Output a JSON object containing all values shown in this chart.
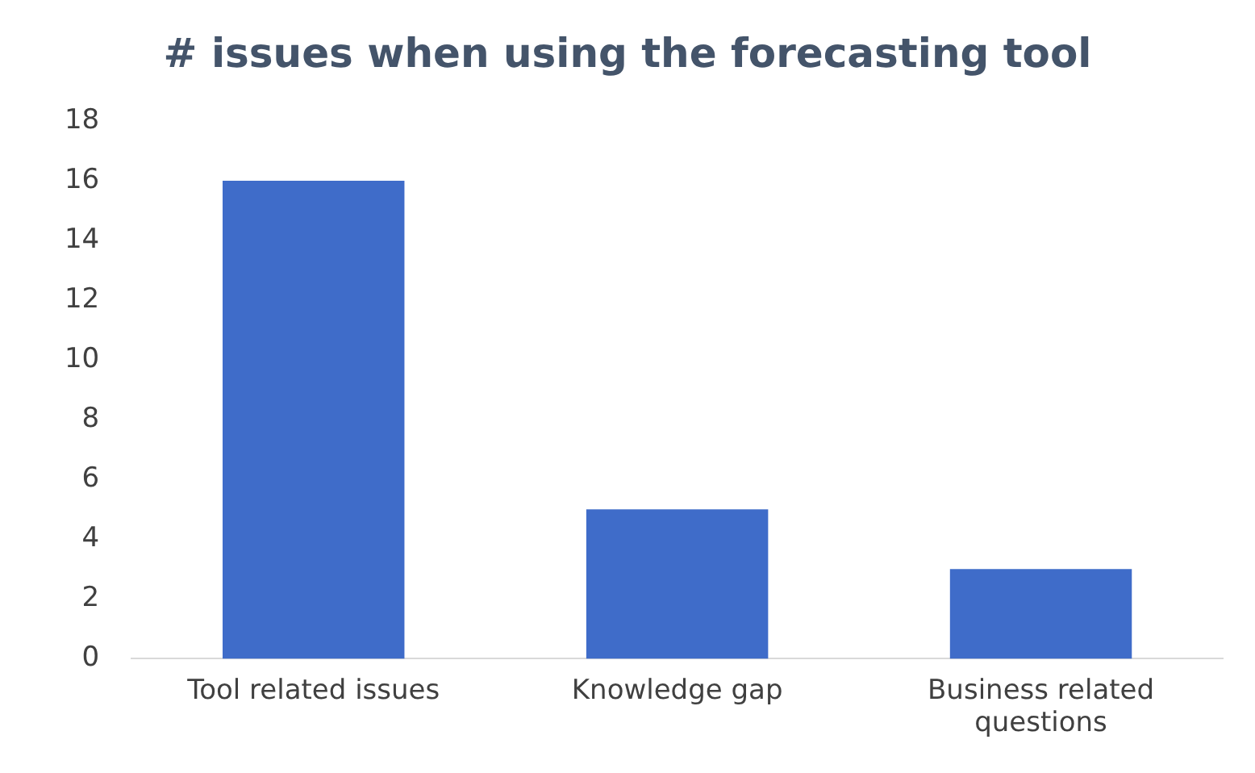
{
  "chart_data": {
    "type": "bar",
    "title": "# issues when using the forecasting tool",
    "categories": [
      "Tool related issues",
      "Knowledge gap",
      "Business related questions"
    ],
    "values": [
      16,
      5,
      3
    ],
    "color": "#3f6cc9",
    "ylim": [
      0,
      18
    ],
    "yticks": [
      0,
      2,
      4,
      6,
      8,
      10,
      12,
      14,
      16,
      18
    ],
    "grid": false,
    "legend": false
  }
}
